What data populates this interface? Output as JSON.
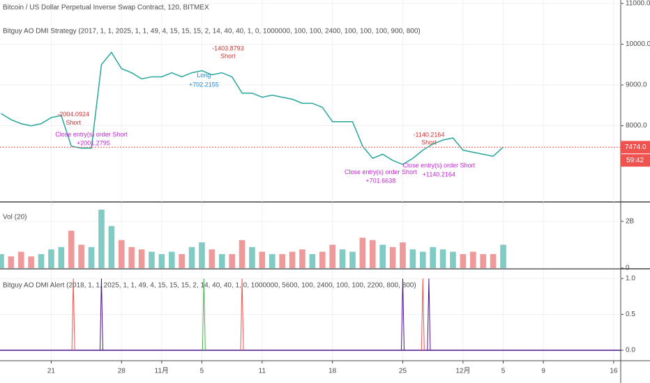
{
  "chart_data": [
    {
      "type": "line",
      "title": "Bitcoin / US Dollar Perpetual Inverse Swap Contract, 120, BITMEX",
      "subtitle": "Bitguy AO DMI Strategy (2017, 1, 1, 2025, 1, 1, 49, 4, 15, 15, 15, 2, 14, 40, 40, 1, 0, 1000000, 100, 100, 2400, 100, 100, 100, 900, 800)",
      "x": [
        16,
        17,
        18,
        19,
        20,
        21,
        22,
        23,
        24,
        25,
        26,
        27,
        28,
        29,
        30,
        31,
        32,
        33,
        34,
        35,
        36,
        37,
        38,
        39,
        40,
        41,
        42,
        43,
        44,
        45,
        46,
        47,
        48,
        49,
        50,
        51,
        52,
        53,
        54,
        55,
        56,
        57,
        58,
        59,
        60,
        61,
        62,
        63,
        64,
        65,
        66
      ],
      "values": [
        8300,
        8150,
        8050,
        8000,
        8050,
        8200,
        8250,
        7500,
        7450,
        7450,
        9500,
        9800,
        9400,
        9300,
        9150,
        9200,
        9200,
        9300,
        9200,
        9300,
        9350,
        9250,
        9300,
        9200,
        8800,
        8800,
        8700,
        8750,
        8700,
        8650,
        8550,
        8550,
        8450,
        8100,
        8100,
        8100,
        7500,
        7200,
        7300,
        7150,
        7050,
        7200,
        7400,
        7550,
        7650,
        7700,
        7400,
        7350,
        7300,
        7250,
        7474
      ],
      "color": "#26a69a",
      "xlim": [
        15.9,
        77.7
      ],
      "ylim": [
        6130,
        11085
      ],
      "yticks": [
        {
          "value": 8000,
          "label": "8000.0"
        },
        {
          "value": 9000,
          "label": "9000.0"
        },
        {
          "value": 10000,
          "label": "10000.0"
        },
        {
          "value": 11000,
          "label": "11000.0"
        }
      ],
      "last_price": {
        "value": 7474,
        "label": "7474.0"
      },
      "countdown": "59:42",
      "annotations": [
        {
          "text": "-2004.0924",
          "x": 23.2,
          "y": 8270,
          "color": "#d32f2f"
        },
        {
          "text": "Short",
          "x": 23.2,
          "y": 8070,
          "color": "#d32f2f"
        },
        {
          "text": "Close entry(s) order Short",
          "x": 25.0,
          "y": 7780,
          "color": "#c026d3"
        },
        {
          "text": "+2001.2795",
          "x": 25.2,
          "y": 7560,
          "color": "#c026d3"
        },
        {
          "text": "-1403.8793",
          "x": 38.6,
          "y": 9890,
          "color": "#d32f2f"
        },
        {
          "text": "Short",
          "x": 38.6,
          "y": 9700,
          "color": "#d32f2f"
        },
        {
          "text": "Long",
          "x": 36.2,
          "y": 9230,
          "color": "#1e88e5"
        },
        {
          "text": "+702.2155",
          "x": 36.2,
          "y": 9000,
          "color": "#1e88e5"
        },
        {
          "text": "-1140.2164",
          "x": 58.6,
          "y": 7770,
          "color": "#d32f2f"
        },
        {
          "text": "Short",
          "x": 58.6,
          "y": 7580,
          "color": "#d32f2f"
        },
        {
          "text": "Close entry(s) order Short",
          "x": 53.8,
          "y": 6850,
          "color": "#c026d3"
        },
        {
          "text": "+701.6638",
          "x": 53.8,
          "y": 6640,
          "color": "#c026d3"
        },
        {
          "text": "Close entry(s) order Short",
          "x": 59.6,
          "y": 7020,
          "color": "#c026d3"
        },
        {
          "text": "+1140.2164",
          "x": 59.6,
          "y": 6790,
          "color": "#c026d3"
        }
      ]
    },
    {
      "type": "bar",
      "title": "Vol (20)",
      "x": [
        16,
        17,
        18,
        19,
        20,
        21,
        22,
        23,
        24,
        25,
        26,
        27,
        28,
        29,
        30,
        31,
        32,
        33,
        34,
        35,
        36,
        37,
        38,
        39,
        40,
        41,
        42,
        43,
        44,
        45,
        46,
        47,
        48,
        49,
        50,
        51,
        52,
        53,
        54,
        55,
        56,
        57,
        58,
        59,
        60,
        61,
        62,
        63,
        64,
        65,
        66
      ],
      "values": [
        0.6,
        0.5,
        0.7,
        0.5,
        0.6,
        0.8,
        0.9,
        1.6,
        1.0,
        0.9,
        2.5,
        1.8,
        1.2,
        0.9,
        0.8,
        0.7,
        0.6,
        0.7,
        0.6,
        0.9,
        1.1,
        0.8,
        0.6,
        0.6,
        1.2,
        0.9,
        0.7,
        0.6,
        0.6,
        0.7,
        0.8,
        0.6,
        0.7,
        1.0,
        0.8,
        0.7,
        1.3,
        1.2,
        1.0,
        0.9,
        1.1,
        0.8,
        0.7,
        0.9,
        0.8,
        0.7,
        0.6,
        0.7,
        0.6,
        0.6,
        1.0
      ],
      "colors": [
        "#ef9a9a",
        "#80cbc4"
      ],
      "ylim": [
        0,
        2.8
      ],
      "yticks": [
        0,
        {
          "value": 2,
          "label": "2B"
        }
      ]
    },
    {
      "type": "spike",
      "title": "Bitguy AO DMI Alert (2018, 1, 1, 2025, 1, 1, 49, 4, 15, 15, 15, 2, 14, 40, 40, 1, 0, 1000000, 5600, 100, 2400, 100, 100, 2200, 800, 800)",
      "x": [
        23.2,
        26,
        36.2,
        40,
        56,
        58,
        58.6
      ],
      "values": [
        1,
        1,
        1,
        1,
        1,
        1,
        1
      ],
      "colors": [
        "#ef5350",
        "#4a148c",
        "#4caf50",
        "#ef5350",
        "#4a148c",
        "#ef5350",
        "#4a148c"
      ],
      "xlim": [
        15.9,
        77.7
      ],
      "xticks": [
        {
          "value": 21,
          "label": "21"
        },
        {
          "value": 28,
          "label": "28"
        },
        {
          "value": 32,
          "label": "11月"
        },
        {
          "value": 36,
          "label": "5"
        },
        {
          "value": 42,
          "label": "11"
        },
        {
          "value": 49,
          "label": "18"
        },
        {
          "value": 56,
          "label": "25"
        },
        {
          "value": 62,
          "label": "12月"
        },
        {
          "value": 66,
          "label": "5"
        },
        {
          "value": 70,
          "label": "9"
        },
        {
          "value": 77,
          "label": "16"
        }
      ],
      "ylim": [
        -0.136,
        1.126
      ],
      "yticks": [
        {
          "value": 0,
          "label": "0.0"
        },
        {
          "value": 0.5,
          "label": "0.5"
        },
        {
          "value": 1,
          "label": "1.0"
        }
      ]
    }
  ]
}
